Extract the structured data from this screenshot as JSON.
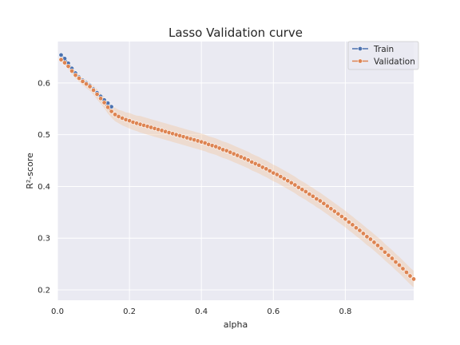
{
  "chart_data": {
    "type": "line",
    "title": "Lasso Validation curve",
    "xlabel": "alpha",
    "ylabel": "R²-score",
    "xlim": [
      0.0,
      0.99
    ],
    "ylim": [
      0.18,
      0.68
    ],
    "xticks": [
      0.0,
      0.2,
      0.4,
      0.6,
      0.8
    ],
    "xtick_labels": [
      "0.0",
      "0.2",
      "0.4",
      "0.6",
      "0.8"
    ],
    "yticks": [
      0.2,
      0.3,
      0.4,
      0.5,
      0.6
    ],
    "ytick_labels": [
      "0.2",
      "0.3",
      "0.4",
      "0.5",
      "0.6"
    ],
    "grid": true,
    "legend_position": "top-right",
    "band_color": "#f2c9a6",
    "background": "#eaeaf2",
    "series": [
      {
        "name": "Train",
        "color": "#4c72b0",
        "marker": "circle",
        "x": [
          0.01,
          0.02,
          0.03,
          0.04,
          0.05,
          0.06,
          0.07,
          0.08,
          0.09,
          0.1,
          0.11,
          0.12,
          0.13,
          0.14,
          0.15
        ],
        "y": [
          0.654,
          0.647,
          0.638,
          0.628,
          0.619,
          0.611,
          0.605,
          0.6,
          0.595,
          0.588,
          0.581,
          0.574,
          0.567,
          0.561,
          0.554
        ]
      },
      {
        "name": "Validation",
        "color": "#dd8452",
        "marker": "circle",
        "x": [
          0.01,
          0.02,
          0.03,
          0.04,
          0.05,
          0.06,
          0.07,
          0.08,
          0.09,
          0.1,
          0.11,
          0.12,
          0.13,
          0.14,
          0.15,
          0.16,
          0.17,
          0.18,
          0.19,
          0.2,
          0.21,
          0.22,
          0.23,
          0.24,
          0.25,
          0.26,
          0.27,
          0.28,
          0.29,
          0.3,
          0.31,
          0.32,
          0.33,
          0.34,
          0.35,
          0.36,
          0.37,
          0.38,
          0.39,
          0.4,
          0.41,
          0.42,
          0.43,
          0.44,
          0.45,
          0.46,
          0.47,
          0.48,
          0.49,
          0.5,
          0.51,
          0.52,
          0.53,
          0.54,
          0.55,
          0.56,
          0.57,
          0.58,
          0.59,
          0.6,
          0.61,
          0.62,
          0.63,
          0.64,
          0.65,
          0.66,
          0.67,
          0.68,
          0.69,
          0.7,
          0.71,
          0.72,
          0.73,
          0.74,
          0.75,
          0.76,
          0.77,
          0.78,
          0.79,
          0.8,
          0.81,
          0.82,
          0.83,
          0.84,
          0.85,
          0.86,
          0.87,
          0.88,
          0.89,
          0.9,
          0.91,
          0.92,
          0.93,
          0.94,
          0.95,
          0.96,
          0.97,
          0.98,
          0.99
        ],
        "y": [
          0.645,
          0.639,
          0.632,
          0.623,
          0.615,
          0.609,
          0.603,
          0.598,
          0.593,
          0.586,
          0.578,
          0.57,
          0.562,
          0.553,
          0.545,
          0.539,
          0.535,
          0.532,
          0.529,
          0.527,
          0.524,
          0.522,
          0.52,
          0.518,
          0.516,
          0.514,
          0.512,
          0.51,
          0.508,
          0.506,
          0.504,
          0.502,
          0.5,
          0.498,
          0.496,
          0.494,
          0.492,
          0.49,
          0.488,
          0.486,
          0.484,
          0.481,
          0.479,
          0.477,
          0.474,
          0.471,
          0.469,
          0.466,
          0.463,
          0.46,
          0.457,
          0.454,
          0.451,
          0.447,
          0.444,
          0.441,
          0.437,
          0.434,
          0.43,
          0.426,
          0.423,
          0.419,
          0.415,
          0.411,
          0.407,
          0.403,
          0.398,
          0.394,
          0.39,
          0.385,
          0.381,
          0.376,
          0.372,
          0.367,
          0.362,
          0.357,
          0.352,
          0.347,
          0.342,
          0.337,
          0.331,
          0.326,
          0.32,
          0.315,
          0.309,
          0.303,
          0.298,
          0.292,
          0.286,
          0.28,
          0.273,
          0.267,
          0.261,
          0.254,
          0.248,
          0.241,
          0.234,
          0.227,
          0.221
        ],
        "band_halfwidth": [
          0.004,
          0.005,
          0.005,
          0.006,
          0.006,
          0.007,
          0.007,
          0.008,
          0.008,
          0.009,
          0.01,
          0.01,
          0.011,
          0.012,
          0.012,
          0.013,
          0.013,
          0.014,
          0.014,
          0.015,
          0.015,
          0.015,
          0.016,
          0.016,
          0.016,
          0.016,
          0.016,
          0.016,
          0.016,
          0.016,
          0.016,
          0.016,
          0.016,
          0.016,
          0.016,
          0.016,
          0.016,
          0.016,
          0.016,
          0.016,
          0.016,
          0.016,
          0.016,
          0.016,
          0.016,
          0.016,
          0.016,
          0.016,
          0.016,
          0.016,
          0.016,
          0.016,
          0.016,
          0.016,
          0.016,
          0.016,
          0.016,
          0.016,
          0.016,
          0.016,
          0.016,
          0.016,
          0.016,
          0.016,
          0.016,
          0.016,
          0.016,
          0.016,
          0.016,
          0.016,
          0.016,
          0.016,
          0.016,
          0.016,
          0.016,
          0.016,
          0.016,
          0.016,
          0.016,
          0.016,
          0.016,
          0.016,
          0.016,
          0.016,
          0.016,
          0.016,
          0.016,
          0.016,
          0.016,
          0.016,
          0.016,
          0.016,
          0.016,
          0.016,
          0.016,
          0.016,
          0.016,
          0.016,
          0.016
        ]
      }
    ]
  }
}
